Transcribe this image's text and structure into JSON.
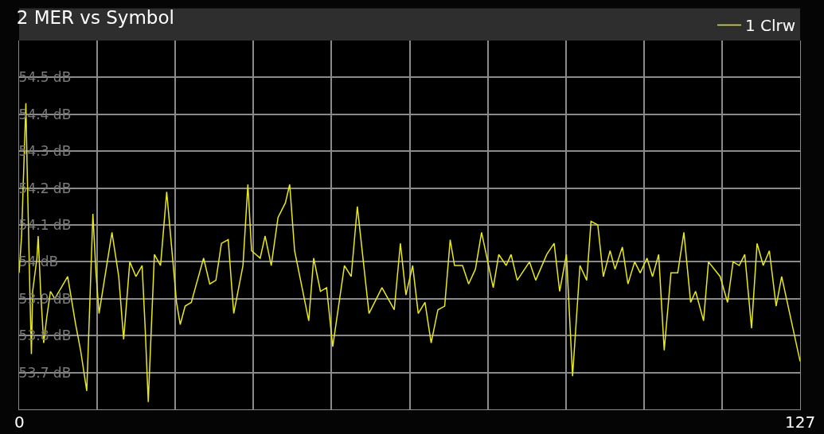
{
  "chart_data": {
    "type": "line",
    "title": "2 MER vs Symbol",
    "x": [
      0,
      0.4,
      1.1,
      1.3,
      1.75,
      2,
      2.2,
      2.9,
      3.1,
      3.5,
      4,
      4.5,
      5.1,
      5.8,
      7.9,
      9.2,
      10,
      11,
      11.5,
      12,
      12.5,
      13,
      15.1,
      16.2,
      17,
      18,
      19,
      20,
      20.5,
      21,
      22,
      23,
      24,
      25.6,
      26.2,
      27,
      28,
      30,
      31,
      32,
      32.9,
      34,
      34.9,
      36.4,
      37.2,
      37.8,
      39.2,
      40,
      41,
      42.1,
      43.3,
      44,
      44.8,
      47.1,
      47.9,
      49,
      50,
      51,
      52.9,
      54,
      55,
      56.9,
      59,
      61,
      62,
      62.9,
      64,
      64.9,
      66,
      67,
      68.1,
      69.2,
      70.1,
      70.8,
      72.1,
      73.1,
      74.2,
      75.2,
      77.1,
      78,
      79.2,
      80,
      81,
      83,
      84,
      85.8,
      87,
      87.9,
      89,
      90,
      91.2,
      92.3,
      93,
      94.1,
      95,
      96.1,
      96.9,
      98.1,
      99,
      100.1,
      101,
      102.1,
      103,
      104,
      104.9,
      106,
      107.1,
      108.1,
      109.2,
      110,
      111.3,
      112.1,
      114,
      115.2,
      116.1,
      117.1,
      118,
      119.1,
      120,
      121,
      122,
      123.1,
      124,
      127
    ],
    "series": [
      {
        "name": "1 Clrw",
        "color": "#e8e81c",
        "values": [
          53.97,
          54.07,
          54.43,
          54.26,
          53.92,
          53.75,
          53.92,
          54.01,
          54.07,
          53.92,
          53.78,
          53.85,
          53.92,
          53.9,
          53.96,
          53.83,
          53.76,
          53.65,
          53.89,
          54.13,
          53.97,
          53.86,
          54.08,
          53.96,
          53.79,
          54.0,
          53.96,
          53.99,
          53.82,
          53.62,
          54.02,
          53.99,
          54.19,
          53.89,
          53.83,
          53.88,
          53.89,
          54.01,
          53.94,
          53.95,
          54.05,
          54.06,
          53.86,
          53.99,
          54.21,
          54.03,
          54.01,
          54.07,
          53.99,
          54.12,
          54.16,
          54.21,
          54.03,
          53.84,
          54.01,
          53.92,
          53.93,
          53.77,
          53.99,
          53.96,
          54.15,
          53.86,
          53.93,
          53.87,
          54.05,
          53.91,
          53.99,
          53.86,
          53.89,
          53.78,
          53.87,
          53.88,
          54.06,
          53.99,
          53.99,
          53.94,
          53.98,
          54.08,
          53.93,
          54.02,
          53.99,
          54.02,
          53.95,
          54.0,
          53.95,
          54.02,
          54.05,
          53.92,
          54.02,
          53.69,
          53.99,
          53.95,
          54.11,
          54.1,
          53.96,
          54.03,
          53.98,
          54.04,
          53.94,
          54.0,
          53.97,
          54.01,
          53.96,
          54.02,
          53.76,
          53.97,
          53.97,
          54.08,
          53.89,
          53.92,
          53.84,
          54.0,
          53.96,
          53.89,
          54.0,
          53.99,
          54.02,
          53.82,
          54.05,
          53.99,
          54.03,
          53.88,
          53.96,
          53.73
        ]
      }
    ],
    "xlim": [
      0,
      127
    ],
    "xticks": [
      0,
      {
        "value": 12.7,
        "label": null
      },
      {
        "value": 25.4,
        "label": null
      },
      {
        "value": 38.1,
        "label": null
      },
      {
        "value": 50.8,
        "label": null
      },
      {
        "value": 63.5,
        "label": null
      },
      {
        "value": 76.2,
        "label": null
      },
      {
        "value": 88.9,
        "label": null
      },
      {
        "value": 101.6,
        "label": null
      },
      {
        "value": 114.3,
        "label": null
      },
      127
    ],
    "ylim": [
      53.6,
      54.6
    ],
    "yticks": [
      {
        "value": 53.7,
        "label": "53.7 dB"
      },
      {
        "value": 53.8,
        "label": "53.8 dB"
      },
      {
        "value": 53.9,
        "label": "53.9 dB"
      },
      {
        "value": 54.0,
        "label": "54 dB"
      },
      {
        "value": 54.1,
        "label": "54.1 dB"
      },
      {
        "value": 54.2,
        "label": "54.2 dB"
      },
      {
        "value": 54.3,
        "label": "54.3 dB"
      },
      {
        "value": 54.4,
        "label": "54.4 dB"
      },
      {
        "value": 54.5,
        "label": "54.5 dB"
      }
    ],
    "grid": true,
    "legend": "top right",
    "marker": "none",
    "line_style": "solid"
  }
}
